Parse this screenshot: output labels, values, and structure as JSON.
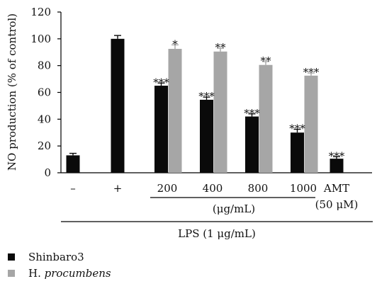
{
  "chart_data": {
    "type": "bar",
    "ylabel": "NO production (% of control)",
    "ylim": [
      0,
      120
    ],
    "yticks": [
      "0",
      "20",
      "40",
      "60",
      "80",
      "100",
      "120"
    ],
    "categories": [
      "–",
      "+",
      "200",
      "400",
      "800",
      "1000",
      "AMT (50 μM)"
    ],
    "category_labels": [
      {
        "line1": "–",
        "line2": ""
      },
      {
        "line1": "+",
        "line2": ""
      },
      {
        "line1": "200",
        "line2": ""
      },
      {
        "line1": "400",
        "line2": ""
      },
      {
        "line1": "800",
        "line2": ""
      },
      {
        "line1": "1000",
        "line2": ""
      },
      {
        "line1": "AMT",
        "line2": "(50 μM)"
      }
    ],
    "series": [
      {
        "name": "Shinbaro3",
        "color": "#0a0a0a",
        "values": [
          13,
          100,
          65,
          54.5,
          42,
          30,
          10.5
        ],
        "errors": [
          1.5,
          2.5,
          2.0,
          2.0,
          2.0,
          2.5,
          1.5
        ],
        "significance": [
          "",
          "",
          "***",
          "***",
          "***",
          "***",
          "***"
        ]
      },
      {
        "name": "H. procumbens",
        "color": "#a6a6a6",
        "values": [
          null,
          null,
          92.5,
          90.5,
          80.5,
          72.5,
          null
        ],
        "errors": [
          null,
          null,
          3.0,
          2.5,
          2.5,
          2.0,
          null
        ],
        "significance": [
          "",
          "",
          "*",
          "**",
          "**",
          "***",
          ""
        ]
      }
    ],
    "unit_label": "(μg/mL)",
    "lps_label": "LPS (1 μg/mL)",
    "legend": [
      {
        "name": "Shinbaro3",
        "color": "#0a0a0a",
        "prefix": "Shinbaro3",
        "italic": ""
      },
      {
        "name": "H. procumbens",
        "color": "#a6a6a6",
        "prefix": "H. ",
        "italic": "procumbens"
      }
    ],
    "legend_position": "bottom-left",
    "grid": false
  }
}
